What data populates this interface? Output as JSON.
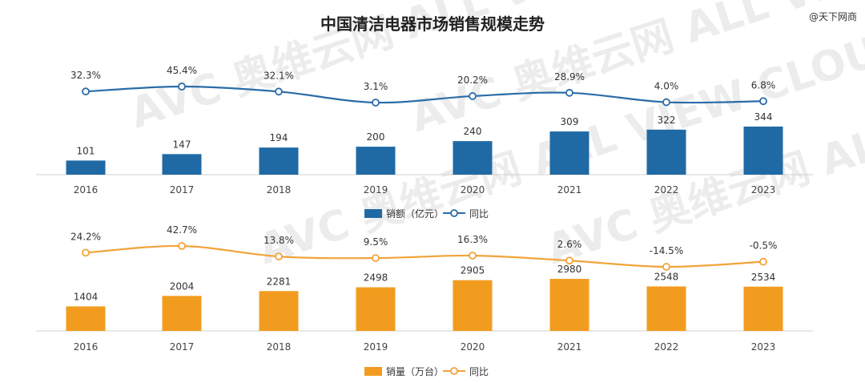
{
  "title": "中国清洁电器市场销售规模走势",
  "source": "@天下网商",
  "watermark": "AVC 奥维云网 ALL VIEW CLOUD",
  "chart_data": [
    {
      "type": "bar",
      "categories": [
        "2016",
        "2017",
        "2018",
        "2019",
        "2020",
        "2021",
        "2022",
        "2023"
      ],
      "series": [
        {
          "name": "销额（亿元）",
          "type": "bar",
          "values": [
            101,
            147,
            194,
            200,
            240,
            309,
            322,
            344
          ],
          "color": "#1f6aa5"
        },
        {
          "name": "同比",
          "type": "line",
          "values": [
            32.3,
            45.4,
            32.1,
            3.1,
            20.2,
            28.9,
            4.0,
            6.8
          ],
          "labels": [
            "32.3%",
            "45.4%",
            "32.1%",
            "3.1%",
            "20.2%",
            "28.9%",
            "4.0%",
            "6.8%"
          ],
          "color": "#2b6ca8"
        }
      ],
      "legend": "bottom-center"
    },
    {
      "type": "bar",
      "categories": [
        "2016",
        "2017",
        "2018",
        "2019",
        "2020",
        "2021",
        "2022",
        "2023"
      ],
      "series": [
        {
          "name": "销量（万台）",
          "type": "bar",
          "values": [
            1404,
            2004,
            2281,
            2498,
            2905,
            2980,
            2548,
            2534
          ],
          "color": "#f29c1f"
        },
        {
          "name": "同比",
          "type": "line",
          "values": [
            24.2,
            42.7,
            13.8,
            9.5,
            16.3,
            2.6,
            -14.5,
            -0.5
          ],
          "labels": [
            "24.2%",
            "42.7%",
            "13.8%",
            "9.5%",
            "16.3%",
            "2.6%",
            "-14.5%",
            "-0.5%"
          ],
          "color": "#f2a33a"
        }
      ],
      "legend": "bottom-center"
    }
  ]
}
